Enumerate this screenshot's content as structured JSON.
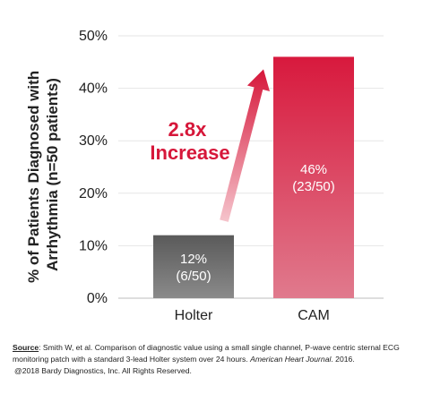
{
  "chart_data": {
    "type": "bar",
    "ylabel_lines": [
      "% of Patients Diagnosed with",
      "Arrhythmia (n=50 patients)"
    ],
    "categories": [
      "Holter",
      "CAM"
    ],
    "values": [
      12,
      46
    ],
    "data_labels": [
      [
        "12%",
        "(6/50)"
      ],
      [
        "46%",
        "(23/50)"
      ]
    ],
    "ylim": [
      0,
      50
    ],
    "yticks": [
      0,
      10,
      20,
      30,
      40,
      50
    ],
    "ytick_labels": [
      "0%",
      "10%",
      "20%",
      "30%",
      "40%",
      "50%"
    ],
    "grid": true,
    "annotation": {
      "lines": [
        "2.8x",
        "Increase"
      ],
      "arrow_from": "Holter",
      "arrow_to": "CAM"
    },
    "colors": {
      "holter": "#555555",
      "cam": "#d8193d",
      "arrow": "#d6173a"
    }
  },
  "footnote": {
    "source_label": "Source",
    "source_text": ": Smith W, et al. Comparison of diagnostic value using a small single channel, P-wave centric sternal ECG monitoring patch with a standard 3-lead Holter system over 24 hours. ",
    "journal": "American Heart Journal",
    "year_suffix": ". 2016.",
    "copyright": "@2018 Bardy Diagnostics, Inc. All Rights Reserved."
  }
}
